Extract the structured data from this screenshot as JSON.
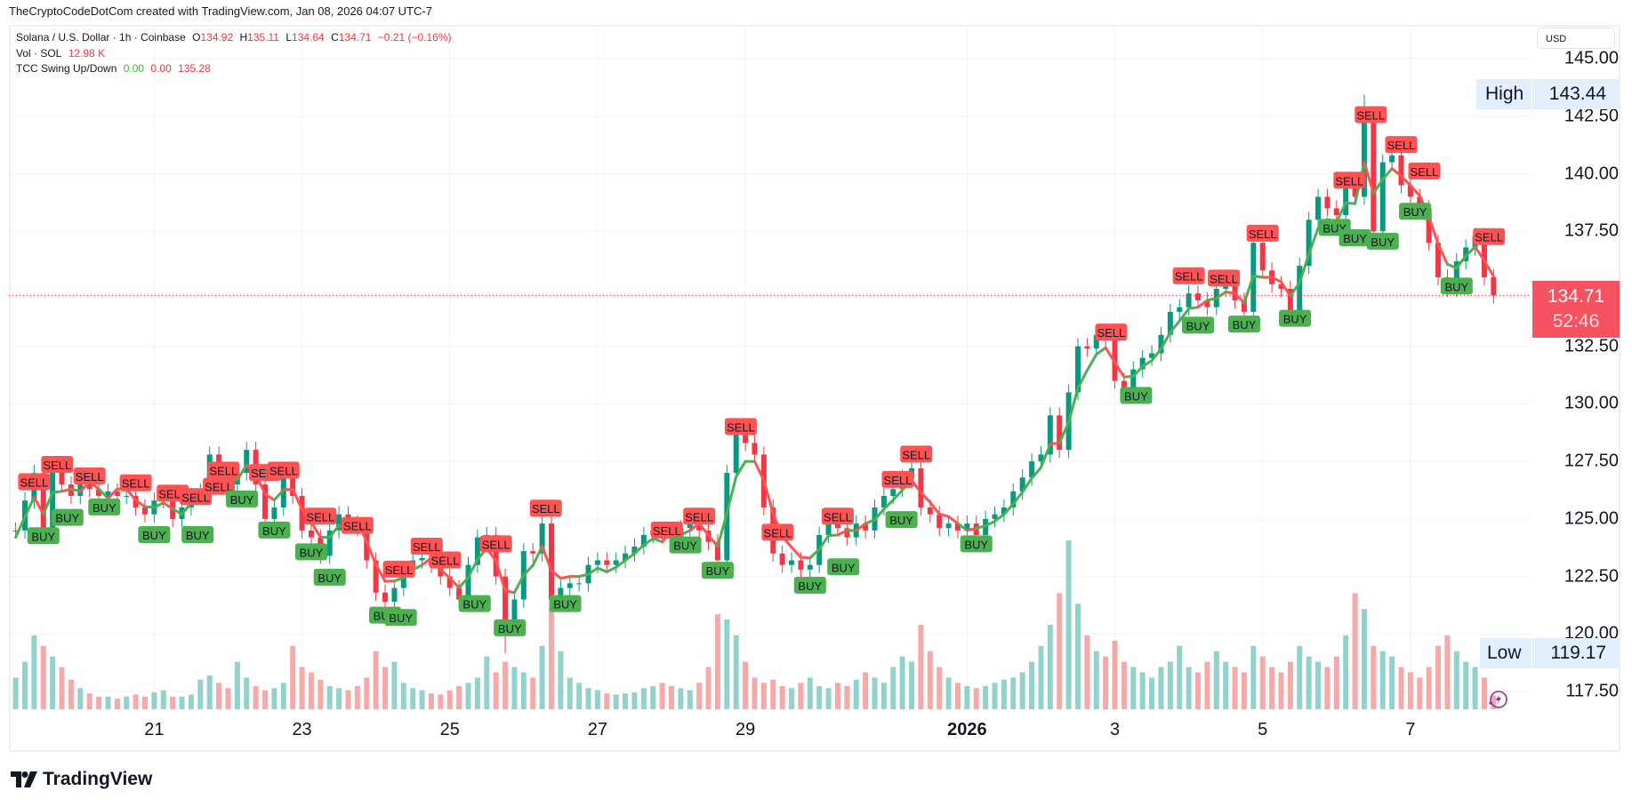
{
  "credit": "TheCryptoCodeDotCom created with TradingView.com, Jan 08, 2026 04:07 UTC-7",
  "legend": {
    "symbol": "Solana / U.S. Dollar · 1h · Coinbase",
    "o_label": "O",
    "o": "134.92",
    "h_label": "H",
    "h": "135.11",
    "l_label": "L",
    "l": "134.64",
    "c_label": "C",
    "c": "134.71",
    "change": "−0.21 (−0.16%)",
    "vol_label": "Vol · SOL",
    "vol": "12.98 K",
    "ind_label": "TCC Swing Up/Down",
    "ind_v1": "0.00",
    "ind_v2": "0.00",
    "ind_v3": "135.28"
  },
  "price_axis": {
    "currency": "USD",
    "ticks": [
      "145.00",
      "142.50",
      "140.00",
      "137.50",
      "132.50",
      "130.00",
      "127.50",
      "125.00",
      "122.50",
      "120.00",
      "117.50"
    ],
    "high_label": "High",
    "high": "143.44",
    "low_label": "Low",
    "low": "119.17",
    "current_price": "134.71",
    "countdown": "52:46"
  },
  "logo": "TradingView",
  "colors": {
    "up": "#089981",
    "down": "#f23645",
    "vol_up": "#92d2cc",
    "vol_down": "#f7a9a7",
    "buy": "#4caf50",
    "sell": "#ff5252",
    "grid": "#f0f3fa",
    "accent_label": "#e3effd"
  },
  "chart_data": {
    "type": "candlestick",
    "ylim": [
      116.73,
      146.47
    ],
    "yticks": [
      145,
      142.5,
      140,
      137.5,
      132.5,
      130,
      127.5,
      125,
      122.5,
      120,
      117.5
    ],
    "x_ticks": [
      {
        "label": "21",
        "bar": 15
      },
      {
        "label": "23",
        "bar": 31
      },
      {
        "label": "25",
        "bar": 47
      },
      {
        "label": "27",
        "bar": 63
      },
      {
        "label": "29",
        "bar": 79
      },
      {
        "label": "2026",
        "bar": 103,
        "bold": true
      },
      {
        "label": "3",
        "bar": 119
      },
      {
        "label": "5",
        "bar": 135
      },
      {
        "label": "7",
        "bar": 151
      }
    ],
    "close": [
      124.5,
      125.8,
      127,
      124.3,
      127.3,
      126.5,
      126,
      126.5,
      126.3,
      126,
      126.2,
      126,
      126,
      125.5,
      125.2,
      125.8,
      126,
      125,
      125.5,
      126,
      126.2,
      127.8,
      126.8,
      126.5,
      127,
      128,
      126.5,
      125,
      125.5,
      126.8,
      126,
      124.5,
      124.2,
      123.4,
      124.5,
      125.2,
      124.8,
      124.6,
      123.2,
      121.8,
      121.4,
      122,
      122.8,
      123.2,
      123.3,
      123,
      122.5,
      122,
      121.5,
      123,
      124.2,
      124.3,
      122.5,
      120.3,
      121.5,
      123.6,
      123.5,
      124.8,
      121.5,
      122,
      122.2,
      122.2,
      123,
      123.2,
      123,
      123.2,
      123.5,
      123.8,
      124.3,
      124.5,
      124.3,
      124.2,
      124.6,
      124.8,
      124.5,
      124,
      123.2,
      127,
      128.8,
      128.3,
      127.8,
      125.5,
      123.5,
      123,
      123.2,
      122.8,
      123,
      124.3,
      125,
      124.6,
      124.2,
      124.8,
      124.5,
      125.5,
      126,
      126.3,
      126.8,
      127.2,
      125.5,
      125.2,
      124.6,
      124.8,
      124.5,
      124.8,
      124.3,
      125,
      125.2,
      125.5,
      126.2,
      126.8,
      127.5,
      127.8,
      129.5,
      128,
      130.5,
      132.5,
      132.4,
      133,
      132.8,
      131,
      130.4,
      131.5,
      132,
      132.2,
      133,
      134,
      134.2,
      134.8,
      134.5,
      134.2,
      135,
      135.2,
      134.5,
      134,
      137,
      135.8,
      135.2,
      135,
      134,
      136,
      138,
      139,
      138.5,
      138.2,
      139.5,
      139,
      142.5,
      137.5,
      140.5,
      140.8,
      139.5,
      139,
      138.5,
      137,
      135.5,
      135,
      136.2,
      136.8,
      137.3,
      135.5,
      134.71
    ],
    "volume_k": [
      30,
      45,
      70,
      60,
      50,
      40,
      28,
      20,
      15,
      12,
      12,
      10,
      12,
      14,
      12,
      16,
      18,
      12,
      12,
      14,
      28,
      32,
      25,
      20,
      45,
      30,
      22,
      18,
      20,
      25,
      60,
      40,
      35,
      28,
      22,
      20,
      18,
      22,
      30,
      55,
      40,
      45,
      25,
      20,
      18,
      15,
      14,
      18,
      22,
      25,
      30,
      50,
      35,
      45,
      40,
      35,
      30,
      60,
      95,
      55,
      30,
      25,
      20,
      18,
      15,
      14,
      15,
      16,
      20,
      22,
      25,
      22,
      20,
      18,
      25,
      40,
      90,
      85,
      70,
      45,
      30,
      25,
      28,
      22,
      20,
      25,
      30,
      22,
      20,
      25,
      22,
      28,
      35,
      30,
      25,
      40,
      50,
      45,
      80,
      55,
      40,
      30,
      25,
      22,
      20,
      22,
      25,
      28,
      30,
      35,
      45,
      60,
      80,
      110,
      160,
      100,
      70,
      55,
      50,
      65,
      45,
      40,
      35,
      30,
      40,
      45,
      60,
      40,
      35,
      45,
      55,
      45,
      40,
      35,
      60,
      50,
      40,
      35,
      45,
      60,
      50,
      45,
      40,
      50,
      70,
      110,
      95,
      60,
      55,
      50,
      40,
      35,
      30,
      40,
      60,
      70,
      55,
      45,
      40,
      30,
      13
    ],
    "high_marker": {
      "price": 143.44,
      "bar": 146
    },
    "low_marker": {
      "price": 119.17,
      "bar": 53
    },
    "signals": {
      "sell_label": "SELL",
      "buy_label": "BUY",
      "sell": [
        [
          2,
          126.6
        ],
        [
          4.5,
          127.35
        ],
        [
          8,
          126.85
        ],
        [
          13,
          126.55
        ],
        [
          17,
          126.1
        ],
        [
          19.5,
          125.95
        ],
        [
          22,
          126.4
        ],
        [
          22.5,
          127.1
        ],
        [
          27,
          127.0
        ],
        [
          29,
          127.1
        ],
        [
          33,
          125.1
        ],
        [
          37,
          124.7
        ],
        [
          41.5,
          122.8
        ],
        [
          44.5,
          123.8
        ],
        [
          46.5,
          123.2
        ],
        [
          52,
          123.9
        ],
        [
          57.4,
          125.45
        ],
        [
          70.5,
          124.5
        ],
        [
          74,
          125.1
        ],
        [
          78.5,
          129.0
        ],
        [
          82.5,
          124.4
        ],
        [
          89,
          125.1
        ],
        [
          95.5,
          126.7
        ],
        [
          97.5,
          127.8
        ],
        [
          118.6,
          133.1
        ],
        [
          127,
          135.55
        ],
        [
          130.8,
          135.45
        ],
        [
          135,
          137.4
        ],
        [
          144.4,
          139.7
        ],
        [
          146.7,
          142.55
        ],
        [
          150,
          141.25
        ],
        [
          152.5,
          140.1
        ],
        [
          159.5,
          137.25
        ]
      ],
      "buy": [
        [
          3,
          124.25
        ],
        [
          5.6,
          125.05
        ],
        [
          9.6,
          125.5
        ],
        [
          15,
          124.3
        ],
        [
          19.7,
          124.3
        ],
        [
          24.5,
          125.85
        ],
        [
          28,
          124.5
        ],
        [
          32,
          123.55
        ],
        [
          34,
          122.45
        ],
        [
          40,
          120.8
        ],
        [
          41.7,
          120.7
        ],
        [
          49.7,
          121.3
        ],
        [
          53.5,
          120.25
        ],
        [
          59.5,
          121.3
        ],
        [
          72.5,
          123.85
        ],
        [
          76,
          122.75
        ],
        [
          86,
          122.1
        ],
        [
          89.6,
          122.9
        ],
        [
          95.9,
          124.95
        ],
        [
          104,
          123.9
        ],
        [
          121.3,
          130.35
        ],
        [
          128,
          133.4
        ],
        [
          133,
          133.45
        ],
        [
          138.5,
          133.7
        ],
        [
          142.8,
          137.65
        ],
        [
          145,
          137.2
        ],
        [
          148,
          137.05
        ],
        [
          151.5,
          138.35
        ],
        [
          156,
          135.1
        ]
      ]
    }
  }
}
